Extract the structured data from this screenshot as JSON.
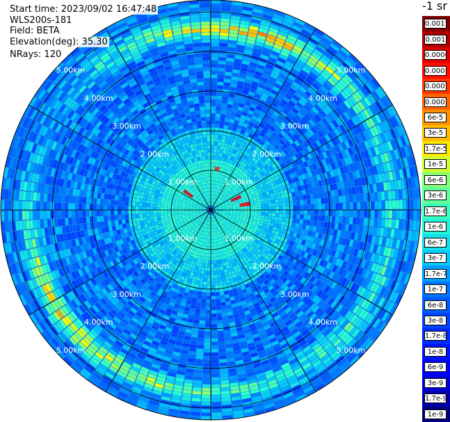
{
  "info": {
    "start_time": "Start time: 2023/09/02 16:47:48",
    "instrument": "WLS200s-181",
    "field": "Field: BETA",
    "elevation": "Elevation(deg): 35.30",
    "nrays": "NRays: 120"
  },
  "colorbar": {
    "title": "-1 sr",
    "labels": [
      "0.0017",
      "0.001",
      "0.0006",
      "0.0003",
      "0.00017",
      "0.0001",
      "6e-5",
      "3e-5",
      "1.7e-5",
      "1e-5",
      "6e-6",
      "3e-6",
      "1.7e-6",
      "1e-6",
      "6e-7",
      "3e-7",
      "1.7e-7",
      "1e-7",
      "6e-8",
      "3e-8",
      "1.7e-8",
      "1e-8",
      "6e-9",
      "3e-9",
      "1.7e-9",
      "1e-9"
    ]
  },
  "range_rings": [
    "1.00km",
    "2.00km",
    "3.00km",
    "4.00km",
    "5.00km"
  ],
  "plot": {
    "type": "ppi",
    "rays": 120,
    "max_range_km": 5.3,
    "colors": {
      "background": "#ffffff",
      "grid": "#000000"
    }
  }
}
